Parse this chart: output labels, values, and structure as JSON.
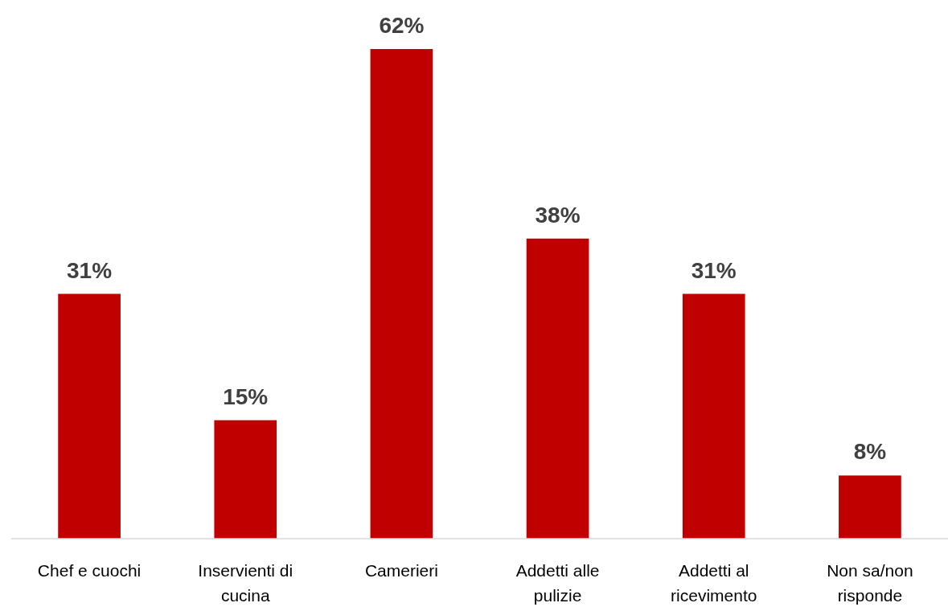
{
  "chart_data": {
    "type": "bar",
    "categories": [
      "Chef e cuochi",
      "Inservienti di cucina",
      "Camerieri",
      "Addetti alle pulizie",
      "Addetti al ricevimento",
      "Non sa/non risponde"
    ],
    "values": [
      31,
      15,
      62,
      38,
      31,
      8
    ],
    "value_labels": [
      "31%",
      "15%",
      "62%",
      "38%",
      "31%",
      "8%"
    ],
    "color": "#c00000"
  }
}
